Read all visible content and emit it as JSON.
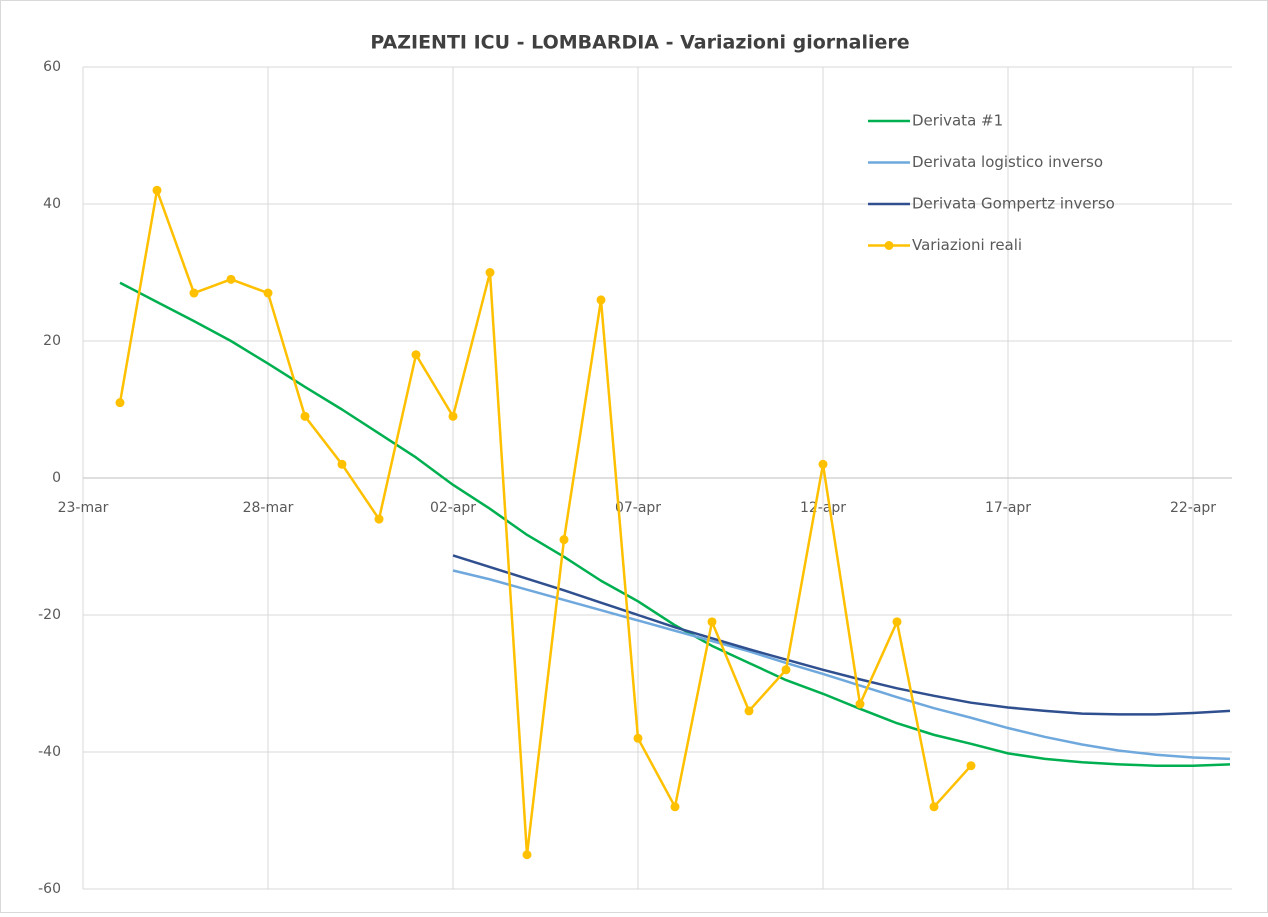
{
  "chart_data": {
    "type": "line",
    "title": "PAZIENTI ICU - LOMBARDIA - Variazioni giornaliere",
    "categories": [
      "23-mar",
      null,
      null,
      null,
      null,
      "28-mar",
      null,
      null,
      null,
      null,
      "02-apr",
      null,
      null,
      null,
      null,
      "07-apr",
      null,
      null,
      null,
      null,
      "12-apr",
      null,
      null,
      null,
      null,
      "17-apr",
      null,
      null,
      null,
      null,
      "22-apr",
      null
    ],
    "series": [
      {
        "name": "Derivata #1",
        "color": "#00b050",
        "marker": false,
        "values": [
          null,
          28.5,
          25.7,
          22.9,
          20,
          16.7,
          13.3,
          10,
          6.5,
          3,
          -1,
          -4.5,
          -8.3,
          -11.5,
          -15,
          -18,
          -21.5,
          -24.5,
          -27,
          -29.5,
          -31.5,
          -33.7,
          -35.8,
          -37.5,
          -38.8,
          -40.2,
          -41,
          -41.5,
          -41.8,
          -42,
          -42,
          -41.8
        ]
      },
      {
        "name": "Derivata logistico inverso",
        "color": "#6fa8dc",
        "marker": false,
        "values": [
          null,
          null,
          null,
          null,
          null,
          null,
          null,
          null,
          null,
          null,
          -13.5,
          -14.8,
          -16.3,
          -17.8,
          -19.3,
          -20.8,
          -22.3,
          -23.8,
          -25.3,
          -27,
          -28.6,
          -30.3,
          -32,
          -33.6,
          -35,
          -36.5,
          -37.8,
          -38.9,
          -39.8,
          -40.4,
          -40.8,
          -41
        ]
      },
      {
        "name": "Derivata Gompertz inverso",
        "color": "#2f4f8f",
        "marker": false,
        "values": [
          null,
          null,
          null,
          null,
          null,
          null,
          null,
          null,
          null,
          null,
          -11.3,
          -13,
          -14.7,
          -16.4,
          -18.2,
          -20,
          -21.8,
          -23.4,
          -25,
          -26.5,
          -28,
          -29.4,
          -30.7,
          -31.8,
          -32.8,
          -33.5,
          -34,
          -34.4,
          -34.5,
          -34.5,
          -34.3,
          -34
        ]
      },
      {
        "name": "Variazioni reali",
        "color": "#ffc000",
        "marker": true,
        "values": [
          null,
          11,
          42,
          27,
          29,
          27,
          9,
          2,
          -6,
          18,
          9,
          30,
          -55,
          -9,
          26,
          -38,
          -48,
          -21,
          -34,
          -28,
          2,
          -33,
          -21,
          -48,
          -42,
          null,
          null,
          null,
          null,
          null,
          null,
          null
        ]
      }
    ],
    "ylim": [
      -60,
      60
    ],
    "yticks": [
      -60,
      -40,
      -20,
      0,
      20,
      40,
      60
    ],
    "grid": true,
    "legend": "top-right"
  }
}
